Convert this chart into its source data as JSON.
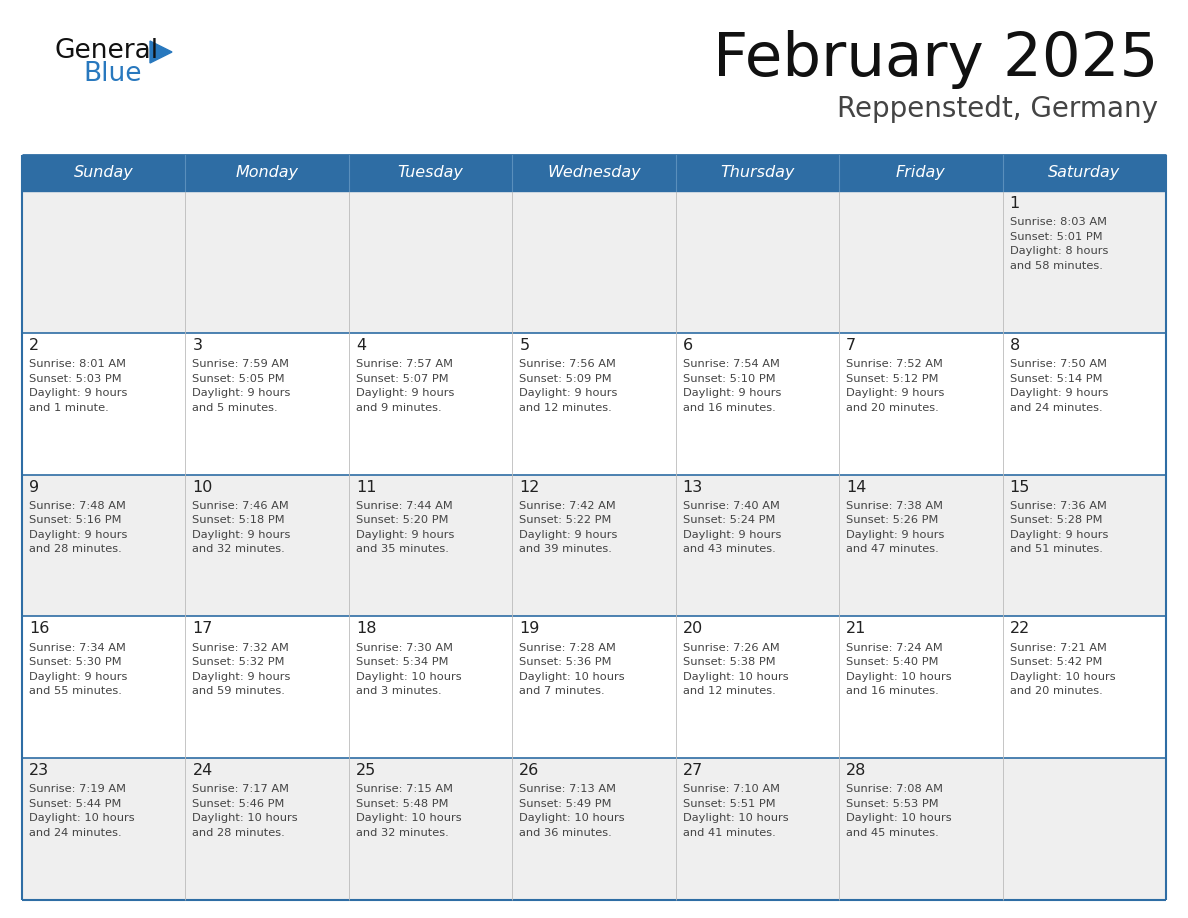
{
  "title": "February 2025",
  "subtitle": "Reppenstedt, Germany",
  "days_of_week": [
    "Sunday",
    "Monday",
    "Tuesday",
    "Wednesday",
    "Thursday",
    "Friday",
    "Saturday"
  ],
  "header_bg": "#2E6DA4",
  "header_text": "#FFFFFF",
  "row_bg_odd": "#EFEFEF",
  "row_bg_even": "#FFFFFF",
  "border_color": "#2E6DA4",
  "day_number_color": "#222222",
  "cell_text_color": "#444444",
  "title_color": "#111111",
  "subtitle_color": "#444444",
  "logo_general_color": "#111111",
  "logo_blue_color": "#2878BE",
  "calendar_data": [
    {
      "day": 1,
      "col": 6,
      "row": 0,
      "sunrise": "8:03 AM",
      "sunset": "5:01 PM",
      "daylight_h": "8 hours",
      "daylight_m": "and 58 minutes."
    },
    {
      "day": 2,
      "col": 0,
      "row": 1,
      "sunrise": "8:01 AM",
      "sunset": "5:03 PM",
      "daylight_h": "9 hours",
      "daylight_m": "and 1 minute."
    },
    {
      "day": 3,
      "col": 1,
      "row": 1,
      "sunrise": "7:59 AM",
      "sunset": "5:05 PM",
      "daylight_h": "9 hours",
      "daylight_m": "and 5 minutes."
    },
    {
      "day": 4,
      "col": 2,
      "row": 1,
      "sunrise": "7:57 AM",
      "sunset": "5:07 PM",
      "daylight_h": "9 hours",
      "daylight_m": "and 9 minutes."
    },
    {
      "day": 5,
      "col": 3,
      "row": 1,
      "sunrise": "7:56 AM",
      "sunset": "5:09 PM",
      "daylight_h": "9 hours",
      "daylight_m": "and 12 minutes."
    },
    {
      "day": 6,
      "col": 4,
      "row": 1,
      "sunrise": "7:54 AM",
      "sunset": "5:10 PM",
      "daylight_h": "9 hours",
      "daylight_m": "and 16 minutes."
    },
    {
      "day": 7,
      "col": 5,
      "row": 1,
      "sunrise": "7:52 AM",
      "sunset": "5:12 PM",
      "daylight_h": "9 hours",
      "daylight_m": "and 20 minutes."
    },
    {
      "day": 8,
      "col": 6,
      "row": 1,
      "sunrise": "7:50 AM",
      "sunset": "5:14 PM",
      "daylight_h": "9 hours",
      "daylight_m": "and 24 minutes."
    },
    {
      "day": 9,
      "col": 0,
      "row": 2,
      "sunrise": "7:48 AM",
      "sunset": "5:16 PM",
      "daylight_h": "9 hours",
      "daylight_m": "and 28 minutes."
    },
    {
      "day": 10,
      "col": 1,
      "row": 2,
      "sunrise": "7:46 AM",
      "sunset": "5:18 PM",
      "daylight_h": "9 hours",
      "daylight_m": "and 32 minutes."
    },
    {
      "day": 11,
      "col": 2,
      "row": 2,
      "sunrise": "7:44 AM",
      "sunset": "5:20 PM",
      "daylight_h": "9 hours",
      "daylight_m": "and 35 minutes."
    },
    {
      "day": 12,
      "col": 3,
      "row": 2,
      "sunrise": "7:42 AM",
      "sunset": "5:22 PM",
      "daylight_h": "9 hours",
      "daylight_m": "and 39 minutes."
    },
    {
      "day": 13,
      "col": 4,
      "row": 2,
      "sunrise": "7:40 AM",
      "sunset": "5:24 PM",
      "daylight_h": "9 hours",
      "daylight_m": "and 43 minutes."
    },
    {
      "day": 14,
      "col": 5,
      "row": 2,
      "sunrise": "7:38 AM",
      "sunset": "5:26 PM",
      "daylight_h": "9 hours",
      "daylight_m": "and 47 minutes."
    },
    {
      "day": 15,
      "col": 6,
      "row": 2,
      "sunrise": "7:36 AM",
      "sunset": "5:28 PM",
      "daylight_h": "9 hours",
      "daylight_m": "and 51 minutes."
    },
    {
      "day": 16,
      "col": 0,
      "row": 3,
      "sunrise": "7:34 AM",
      "sunset": "5:30 PM",
      "daylight_h": "9 hours",
      "daylight_m": "and 55 minutes."
    },
    {
      "day": 17,
      "col": 1,
      "row": 3,
      "sunrise": "7:32 AM",
      "sunset": "5:32 PM",
      "daylight_h": "9 hours",
      "daylight_m": "and 59 minutes."
    },
    {
      "day": 18,
      "col": 2,
      "row": 3,
      "sunrise": "7:30 AM",
      "sunset": "5:34 PM",
      "daylight_h": "10 hours",
      "daylight_m": "and 3 minutes."
    },
    {
      "day": 19,
      "col": 3,
      "row": 3,
      "sunrise": "7:28 AM",
      "sunset": "5:36 PM",
      "daylight_h": "10 hours",
      "daylight_m": "and 7 minutes."
    },
    {
      "day": 20,
      "col": 4,
      "row": 3,
      "sunrise": "7:26 AM",
      "sunset": "5:38 PM",
      "daylight_h": "10 hours",
      "daylight_m": "and 12 minutes."
    },
    {
      "day": 21,
      "col": 5,
      "row": 3,
      "sunrise": "7:24 AM",
      "sunset": "5:40 PM",
      "daylight_h": "10 hours",
      "daylight_m": "and 16 minutes."
    },
    {
      "day": 22,
      "col": 6,
      "row": 3,
      "sunrise": "7:21 AM",
      "sunset": "5:42 PM",
      "daylight_h": "10 hours",
      "daylight_m": "and 20 minutes."
    },
    {
      "day": 23,
      "col": 0,
      "row": 4,
      "sunrise": "7:19 AM",
      "sunset": "5:44 PM",
      "daylight_h": "10 hours",
      "daylight_m": "and 24 minutes."
    },
    {
      "day": 24,
      "col": 1,
      "row": 4,
      "sunrise": "7:17 AM",
      "sunset": "5:46 PM",
      "daylight_h": "10 hours",
      "daylight_m": "and 28 minutes."
    },
    {
      "day": 25,
      "col": 2,
      "row": 4,
      "sunrise": "7:15 AM",
      "sunset": "5:48 PM",
      "daylight_h": "10 hours",
      "daylight_m": "and 32 minutes."
    },
    {
      "day": 26,
      "col": 3,
      "row": 4,
      "sunrise": "7:13 AM",
      "sunset": "5:49 PM",
      "daylight_h": "10 hours",
      "daylight_m": "and 36 minutes."
    },
    {
      "day": 27,
      "col": 4,
      "row": 4,
      "sunrise": "7:10 AM",
      "sunset": "5:51 PM",
      "daylight_h": "10 hours",
      "daylight_m": "and 41 minutes."
    },
    {
      "day": 28,
      "col": 5,
      "row": 4,
      "sunrise": "7:08 AM",
      "sunset": "5:53 PM",
      "daylight_h": "10 hours",
      "daylight_m": "and 45 minutes."
    }
  ]
}
